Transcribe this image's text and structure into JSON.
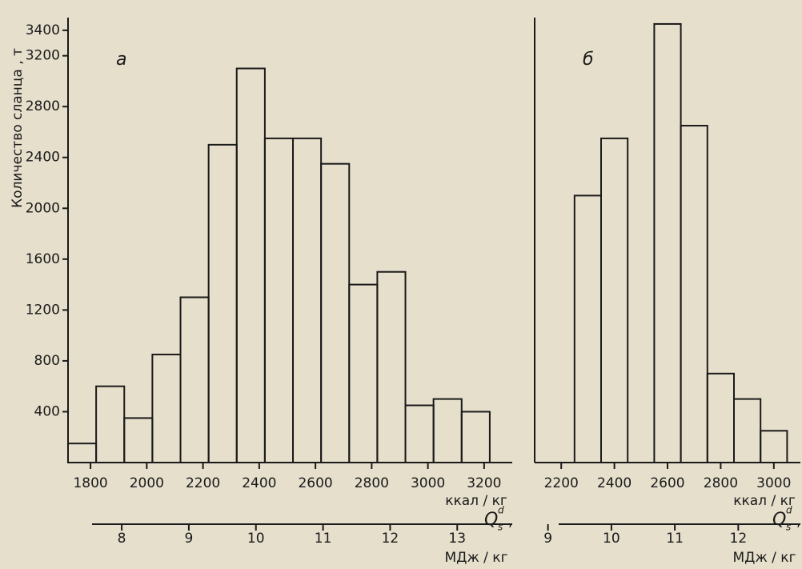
{
  "chart_data": [
    {
      "type": "histogram",
      "panel_label": "а",
      "ylabel": "Количество сланца , т",
      "bins": [
        1720,
        1820,
        1920,
        2020,
        2120,
        2220,
        2320,
        2420,
        2520,
        2620,
        2720,
        2820,
        2920,
        3020,
        3120,
        3220
      ],
      "values": [
        150,
        600,
        350,
        850,
        1300,
        2500,
        3100,
        2550,
        2550,
        2350,
        1400,
        1500,
        450,
        500,
        400
      ],
      "color": "#1a1a1a",
      "xlim": [
        1720,
        3300
      ],
      "xticks": [
        1800,
        2000,
        2200,
        2400,
        2600,
        2800,
        3000,
        3200
      ],
      "ylim": [
        0,
        3500
      ],
      "yticks": [
        400,
        800,
        1200,
        1600,
        2000,
        2400,
        2800,
        3200,
        3400
      ],
      "x2lim": [
        7.2,
        13.82
      ],
      "x2ticks": [
        8,
        9,
        10,
        11,
        12,
        13
      ],
      "xlabel": "ккал / кг",
      "x2label": "МДж / кг",
      "quantity": "Q",
      "quantity_sub": "s",
      "quantity_sup": "d",
      "quantity_sep": ","
    },
    {
      "type": "histogram",
      "panel_label": "б",
      "bins": [
        2250,
        2350,
        2450,
        2550,
        2650,
        2750,
        2850,
        2950,
        3050
      ],
      "values": [
        2100,
        2550,
        0,
        3450,
        2650,
        700,
        500,
        250
      ],
      "color": "#1a1a1a",
      "xlim": [
        2100,
        3100
      ],
      "xticks": [
        2200,
        2400,
        2600,
        2800,
        3000
      ],
      "ylim": [
        0,
        3500
      ],
      "x2lim": [
        8.79,
        12.98
      ],
      "x2ticks": [
        9,
        10,
        11,
        12
      ],
      "xlabel": "ккал / кг",
      "x2label": "МДж / кг",
      "quantity": "Q",
      "quantity_sub": "s",
      "quantity_sup": "d",
      "quantity_sep": ","
    }
  ]
}
